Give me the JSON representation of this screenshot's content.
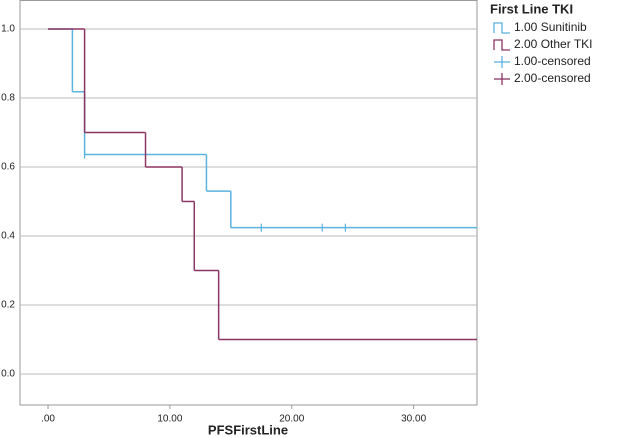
{
  "chart_data": {
    "type": "step",
    "xlabel": "PFSFirstLine",
    "legend_title": "First Line TKI",
    "legend": "right",
    "grid": true,
    "xlim": [
      -2.3,
      35.2
    ],
    "ylim": [
      -0.09,
      1.084
    ],
    "xticks": [
      {
        "value": 0,
        "label": ".00"
      },
      {
        "value": 10,
        "label": "10.00"
      },
      {
        "value": 20,
        "label": "20.00"
      },
      {
        "value": 30,
        "label": "30.00"
      }
    ],
    "yticks": [
      {
        "value": 0,
        "label": "0.0"
      },
      0.2,
      0.4,
      0.6,
      0.8,
      {
        "value": 1,
        "label": "1.0"
      }
    ],
    "series": [
      {
        "name": "1.00 Sunitinib",
        "color": "#5bb3e0",
        "x": [
          0,
          2,
          3,
          13,
          15
        ],
        "values": [
          1.0,
          0.818,
          0.636,
          0.53,
          0.424
        ]
      },
      {
        "name": "2.00 Other TKI",
        "color": "#8b3563",
        "x": [
          0,
          3,
          8,
          11,
          12,
          14
        ],
        "values": [
          1.0,
          0.7,
          0.6,
          0.5,
          0.3,
          0.1
        ]
      },
      {
        "name": "1.00-censored",
        "color": "#5bb3e0",
        "censored": true,
        "x": [
          3,
          17.5,
          22.5,
          24.4
        ],
        "values": [
          0.636,
          0.424,
          0.424,
          0.424
        ]
      },
      {
        "name": "2.00-censored",
        "color": "#8b3563",
        "censored": true,
        "x": [],
        "values": []
      }
    ]
  }
}
